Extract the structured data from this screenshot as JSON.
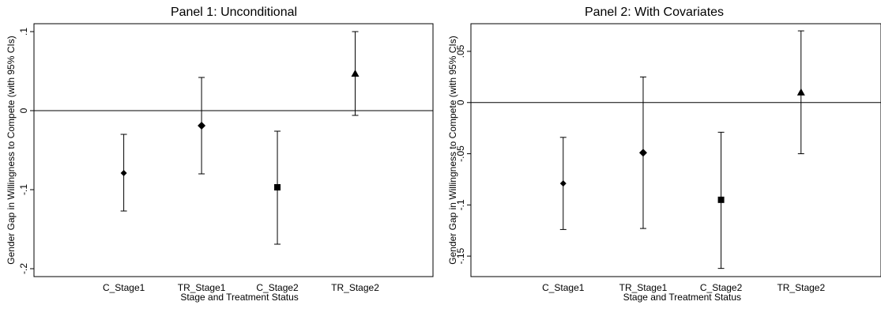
{
  "chart_data": [
    {
      "type": "scatter",
      "title": "Panel 1: Unconditional",
      "ylabel": "Gender Gap in Willingness to Compete (with 95% CIs)",
      "xlabel": "",
      "categories": [
        "C_Stage1",
        "TR_Stage1",
        "C_Stage2",
        "TR_Stage2"
      ],
      "ylim": [
        -0.21,
        0.11
      ],
      "yticks": [
        0.1,
        0,
        -0.1,
        -0.2
      ],
      "ytick_labels": [
        ".1",
        "0",
        "-.1",
        "-.2"
      ],
      "reference_line": 0,
      "points": [
        {
          "category": "C_Stage1",
          "estimate": -0.079,
          "ci_low": -0.127,
          "ci_high": -0.03,
          "marker": "diamond"
        },
        {
          "category": "TR_Stage1",
          "estimate": -0.019,
          "ci_low": -0.08,
          "ci_high": 0.042,
          "marker": "diamond-large"
        },
        {
          "category": "C_Stage2",
          "estimate": -0.097,
          "ci_low": -0.169,
          "ci_high": -0.026,
          "marker": "square"
        },
        {
          "category": "TR_Stage2",
          "estimate": 0.047,
          "ci_low": -0.006,
          "ci_high": 0.1,
          "marker": "triangle"
        }
      ]
    },
    {
      "type": "scatter",
      "title": "Panel 2: With Covariates",
      "ylabel": "Gender Gap in Willingness to Compete (with 95% CIs)",
      "xlabel": "Stage and Treatment Status",
      "categories": [
        "C_Stage1",
        "TR_Stage1",
        "C_Stage2",
        "TR_Stage2"
      ],
      "ylim": [
        -0.17,
        0.077
      ],
      "yticks": [
        0.05,
        0,
        -0.05,
        -0.1,
        -0.15
      ],
      "ytick_labels": [
        ".05",
        "0",
        "-.05",
        "-.1",
        "-.15"
      ],
      "reference_line": 0,
      "points": [
        {
          "category": "C_Stage1",
          "estimate": -0.079,
          "ci_low": -0.124,
          "ci_high": -0.034,
          "marker": "diamond"
        },
        {
          "category": "TR_Stage1",
          "estimate": -0.049,
          "ci_low": -0.123,
          "ci_high": 0.025,
          "marker": "diamond-large"
        },
        {
          "category": "C_Stage2",
          "estimate": -0.095,
          "ci_low": -0.162,
          "ci_high": -0.029,
          "marker": "square"
        },
        {
          "category": "TR_Stage2",
          "estimate": 0.01,
          "ci_low": -0.05,
          "ci_high": 0.07,
          "marker": "triangle"
        }
      ]
    }
  ],
  "shared_xlabel": "Stage and Treatment Status"
}
